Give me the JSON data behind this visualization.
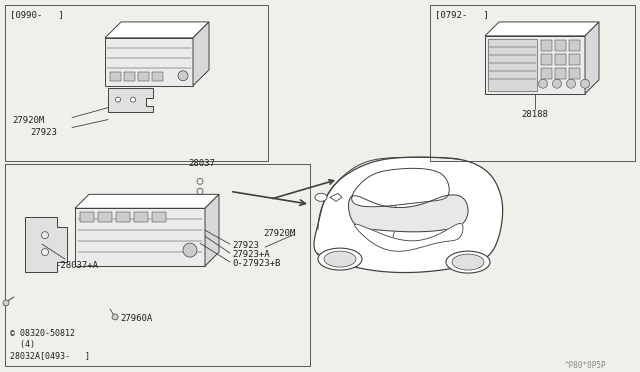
{
  "bg_color": "#f0f0eb",
  "line_color": "#404040",
  "text_color": "#202020",
  "watermark": "^P80*0P5P",
  "labels": {
    "bracket_top_date": "[0990-   ]",
    "bracket_bot_date": "[0792-   ]",
    "part_27920M_top": "27920M",
    "part_27923_top": "27923",
    "part_28037": "28037",
    "part_27923_bot": "27923",
    "part_27923A": "27923+A",
    "part_27923B": "0-27923+B",
    "part_27920M_bot": "27920M",
    "part_28037A": "-28037+A",
    "part_27960A": "27960A",
    "part_screw": "© 08320-50812",
    "part_screw_qty": "  (4)",
    "part_28032A": "28032A[0493-   ]",
    "part_28188": "28188"
  }
}
